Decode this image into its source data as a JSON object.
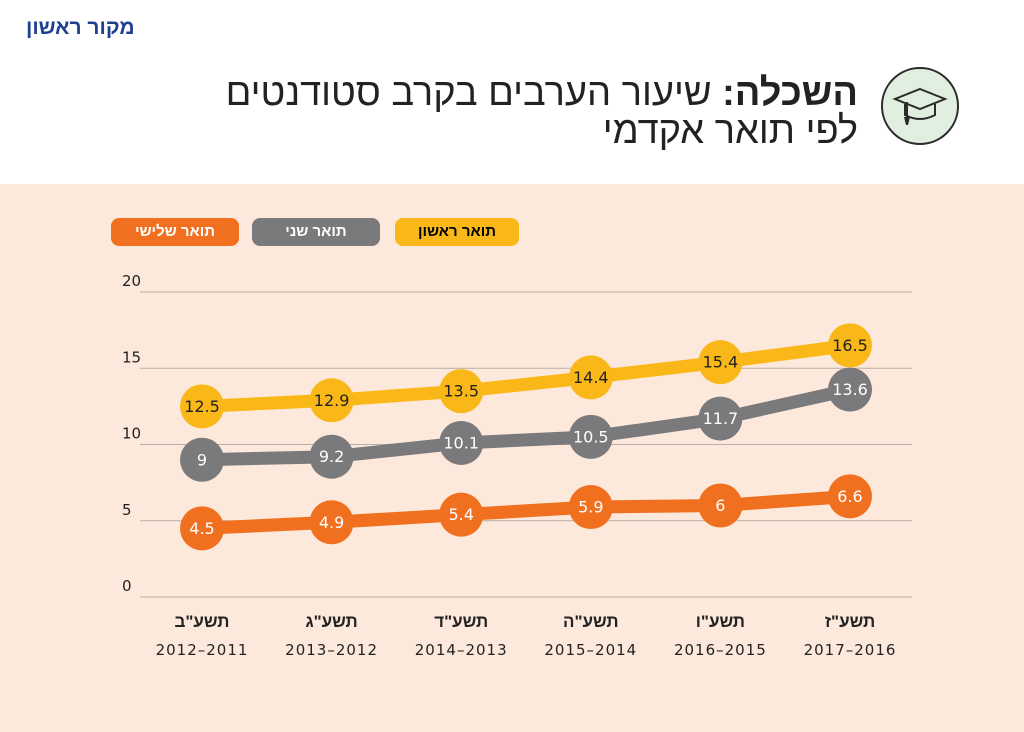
{
  "brand": "מקור ראשון",
  "title": {
    "strong": "השכלה:",
    "rest": " שיעור הערבים בקרב סטודנטים",
    "line2": "לפי תואר אקדמי"
  },
  "icon": "graduation-cap-icon",
  "colors": {
    "first": "#f9b818",
    "second": "#7a7a7c",
    "third": "#f0701f",
    "panel": "#fde9db"
  },
  "legend": [
    {
      "label": "תואר ראשון",
      "color": "#f9b818",
      "text_color": "#000000"
    },
    {
      "label": "תואר שני",
      "color": "#7a7a7c",
      "text_color": "#ffffff"
    },
    {
      "label": "תואר שלישי",
      "color": "#f0701f",
      "text_color": "#ffffff"
    }
  ],
  "chart_data": {
    "type": "line",
    "title": "השכלה: שיעור הערבים בקרב סטודנטים לפי תואר אקדמי",
    "categories": [
      "תשע\"ב",
      "תשע\"ג",
      "תשע\"ד",
      "תשע\"ה",
      "תשע\"ו",
      "תשע\"ז"
    ],
    "category_years": [
      "2012-2011",
      "2013-2012",
      "2014-2013",
      "2015-2014",
      "2016-2015",
      "2017-2016"
    ],
    "yticks": [
      0,
      5,
      10,
      15,
      20
    ],
    "ylim": [
      0,
      20
    ],
    "grid": true,
    "legend_position": "top-left",
    "series": [
      {
        "name": "תואר ראשון",
        "color": "#f9b818",
        "label_color": "#222222",
        "values": [
          12.5,
          12.9,
          13.5,
          14.4,
          15.4,
          16.5
        ],
        "labels": [
          "12.5",
          "12.9",
          "13.5",
          "14.4",
          "15.4",
          "16.5"
        ]
      },
      {
        "name": "תואר שני",
        "color": "#7a7a7c",
        "label_color": "#ffffff",
        "values": [
          9,
          9.2,
          10.1,
          10.5,
          11.7,
          13.6
        ],
        "labels": [
          "9",
          "9.2",
          "10.1",
          "10.5",
          "11.7",
          "13.6"
        ]
      },
      {
        "name": "תואר שלישי",
        "color": "#f0701f",
        "label_color": "#ffffff",
        "values": [
          4.5,
          4.9,
          5.4,
          5.9,
          6,
          6.6
        ],
        "labels": [
          "4.5",
          "4.9",
          "5.4",
          "5.9",
          "6",
          "6.6"
        ]
      }
    ]
  }
}
